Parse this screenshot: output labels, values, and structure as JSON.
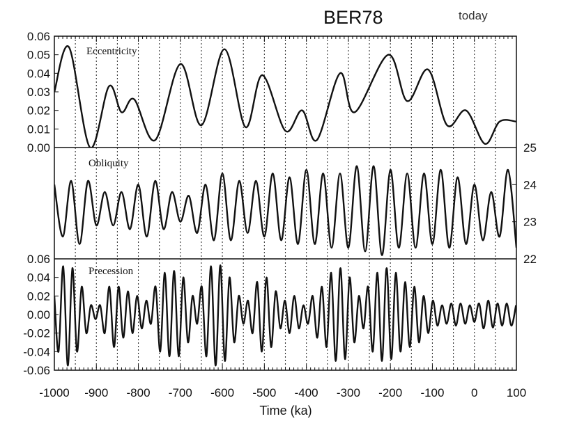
{
  "chart_data": {
    "type": "line",
    "title": "BER78",
    "annotation": "today",
    "xlabel": "Time (ka)",
    "xlim": [
      -1000,
      100
    ],
    "x_ticks": [
      "-1000",
      "-900",
      "-800",
      "-700",
      "-600",
      "-500",
      "-400",
      "-300",
      "-200",
      "-100",
      "0",
      "100"
    ],
    "vertical_gridlines": "dotted, every 50 ka",
    "panels": [
      {
        "label": "Eccentricity",
        "ylim": [
          0.0,
          0.06
        ],
        "y_axis_side": "left",
        "y_ticks": [
          "0.00",
          "0.01",
          "0.02",
          "0.03",
          "0.04",
          "0.05",
          "0.06"
        ],
        "series": {
          "x": [
            -1000,
            -965,
            -915,
            -870,
            -840,
            -810,
            -760,
            -700,
            -650,
            -595,
            -545,
            -505,
            -450,
            -410,
            -375,
            -320,
            -285,
            -205,
            -160,
            -110,
            -65,
            -20,
            25,
            60,
            100
          ],
          "y": [
            0.03,
            0.054,
            0.0,
            0.033,
            0.019,
            0.026,
            0.004,
            0.045,
            0.012,
            0.053,
            0.011,
            0.039,
            0.009,
            0.02,
            0.004,
            0.04,
            0.019,
            0.05,
            0.025,
            0.042,
            0.012,
            0.02,
            0.002,
            0.014,
            0.014
          ]
        }
      },
      {
        "label": "Obliquity",
        "ylim": [
          22,
          25
        ],
        "y_axis_side": "right",
        "y_ticks": [
          "22",
          "23",
          "24",
          "25"
        ],
        "series": {
          "x": [
            -1000,
            -980,
            -960,
            -940,
            -920,
            -900,
            -880,
            -860,
            -840,
            -820,
            -800,
            -780,
            -760,
            -740,
            -720,
            -700,
            -680,
            -660,
            -640,
            -620,
            -600,
            -580,
            -560,
            -540,
            -520,
            -500,
            -480,
            -460,
            -440,
            -420,
            -400,
            -380,
            -360,
            -340,
            -320,
            -300,
            -280,
            -260,
            -240,
            -220,
            -200,
            -180,
            -160,
            -140,
            -120,
            -100,
            -80,
            -60,
            -40,
            -20,
            0,
            20,
            40,
            60,
            80,
            100
          ],
          "y": [
            24.0,
            22.6,
            24.1,
            22.4,
            24.1,
            22.9,
            23.8,
            22.9,
            23.8,
            22.8,
            24.0,
            22.6,
            24.1,
            22.8,
            23.8,
            23.0,
            23.7,
            22.7,
            24.0,
            22.5,
            24.3,
            22.5,
            24.1,
            22.7,
            24.1,
            22.6,
            24.3,
            22.5,
            24.2,
            22.4,
            24.4,
            22.4,
            24.3,
            22.3,
            24.3,
            22.3,
            24.5,
            22.2,
            24.5,
            22.1,
            24.4,
            22.3,
            24.3,
            22.3,
            24.3,
            22.4,
            24.4,
            22.3,
            24.2,
            22.4,
            24.0,
            22.5,
            23.8,
            22.6,
            24.4,
            22.3
          ]
        }
      },
      {
        "label": "Precession",
        "ylim": [
          -0.06,
          0.06
        ],
        "y_axis_side": "left",
        "y_ticks": [
          "0.06",
          "0.04",
          "0.02",
          "0.00",
          "-0.02",
          "-0.04",
          "-0.06"
        ],
        "series": {
          "x": [
            -1000,
            -990,
            -979,
            -968,
            -957,
            -946,
            -935,
            -924,
            -913,
            -902,
            -891,
            -880,
            -869,
            -858,
            -847,
            -836,
            -825,
            -814,
            -803,
            -792,
            -781,
            -770,
            -759,
            -748,
            -737,
            -726,
            -715,
            -704,
            -693,
            -682,
            -671,
            -660,
            -649,
            -638,
            -627,
            -616,
            -605,
            -594,
            -583,
            -572,
            -561,
            -550,
            -539,
            -528,
            -517,
            -506,
            -495,
            -484,
            -473,
            -462,
            -451,
            -440,
            -429,
            -418,
            -407,
            -396,
            -385,
            -374,
            -363,
            -352,
            -341,
            -330,
            -319,
            -308,
            -297,
            -286,
            -275,
            -264,
            -253,
            -242,
            -231,
            -220,
            -209,
            -198,
            -187,
            -176,
            -165,
            -154,
            -143,
            -132,
            -121,
            -110,
            -99,
            -88,
            -77,
            -66,
            -55,
            -44,
            -33,
            -22,
            -11,
            0,
            11,
            22,
            33,
            44,
            55,
            66,
            77,
            88,
            99
          ],
          "y": [
            0.02,
            -0.04,
            0.052,
            -0.055,
            0.05,
            -0.04,
            0.03,
            -0.02,
            0.01,
            -0.005,
            0.01,
            -0.02,
            0.03,
            -0.035,
            0.03,
            -0.025,
            0.025,
            -0.02,
            0.02,
            -0.015,
            0.015,
            -0.01,
            0.03,
            -0.04,
            0.045,
            -0.045,
            0.047,
            -0.045,
            0.04,
            -0.03,
            0.02,
            -0.01,
            0.03,
            -0.045,
            0.052,
            -0.055,
            0.053,
            -0.05,
            0.04,
            -0.03,
            0.02,
            -0.01,
            0.015,
            -0.02,
            0.035,
            -0.04,
            0.04,
            -0.035,
            0.025,
            -0.015,
            0.015,
            -0.02,
            0.02,
            -0.015,
            0.01,
            -0.01,
            0.02,
            -0.025,
            0.03,
            -0.035,
            0.045,
            -0.05,
            0.05,
            -0.048,
            0.04,
            -0.03,
            0.02,
            -0.015,
            0.03,
            -0.04,
            0.045,
            -0.05,
            0.05,
            -0.048,
            0.045,
            -0.04,
            0.035,
            -0.035,
            0.03,
            -0.03,
            0.02,
            -0.02,
            0.015,
            -0.012,
            0.01,
            -0.01,
            0.012,
            -0.012,
            0.012,
            -0.01,
            0.01,
            -0.008,
            0.012,
            -0.015,
            0.015,
            -0.014,
            0.012,
            -0.012,
            0.012,
            -0.012,
            0.01
          ]
        }
      }
    ]
  }
}
